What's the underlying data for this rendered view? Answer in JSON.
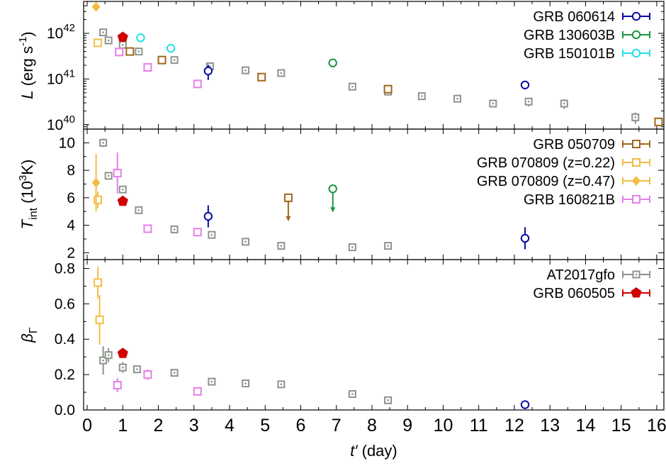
{
  "chart_data": {
    "type": "scatter",
    "x_axis": {
      "label_italic": "t′",
      "label_unit": " (day)",
      "range": [
        -0.1,
        16.2
      ],
      "ticks": [
        0,
        1,
        2,
        3,
        4,
        5,
        6,
        7,
        8,
        9,
        10,
        11,
        12,
        13,
        14,
        15,
        16
      ]
    },
    "panels": [
      {
        "id": "L",
        "ylabel_italic": "L",
        "ylabel_unit": " (erg s",
        "ylabel_sup": "-1",
        "ylabel_close": ")",
        "ylog": true,
        "yrange": [
          8e+39,
          5e+42
        ],
        "yticks": [
          {
            "base": "10",
            "exp": "40",
            "value": 1e+40
          },
          {
            "base": "10",
            "exp": "41",
            "value": 1e+41
          },
          {
            "base": "10",
            "exp": "42",
            "value": 1e+42
          }
        ],
        "legend": [
          "GRB 060614",
          "GRB 130603B",
          "GRB 150101B"
        ],
        "series": [
          {
            "name": "AT2017gfo",
            "color": "#8c948c",
            "marker": "square-dot",
            "x": [
              0.45,
              0.6,
              1.0,
              1.45,
              2.45,
              3.45,
              4.45,
              5.45,
              7.45,
              8.45,
              9.4,
              10.4,
              11.4,
              12.4,
              13.4,
              15.4
            ],
            "y": [
              1.05e+42,
              7e+41,
              5.6e+41,
              4e+41,
              2.6e+41,
              1.9e+41,
              1.55e+41,
              1.35e+41,
              6.8e+40,
              5.3e+40,
              4.2e+40,
              3.7e+40,
              2.9e+40,
              3.2e+40,
              2.9e+40,
              1.45e+40
            ],
            "yerr": [
              1.8e+41,
              5e+40,
              5e+40,
              3e+40,
              2e+40,
              1.5e+40,
              1e+40,
              1e+40,
              5e+39,
              4e+39,
              3e+39,
              3e+39,
              3e+39,
              7e+39,
              7e+39,
              4e+39
            ]
          },
          {
            "name": "GRB 050709",
            "color": "#a0661a",
            "marker": "square-open",
            "x": [
              1.2,
              2.1,
              4.9,
              8.45,
              16.05
            ],
            "y": [
              4e+41,
              2.6e+41,
              1.1e+41,
              6e+40,
              1.15e+40
            ],
            "yerr": [
              0,
              0,
              0,
              0,
              0
            ]
          },
          {
            "name": "GRB 070809 (z=0.22)",
            "color": "#f2bd45",
            "marker": "square-open",
            "x": [
              0.3
            ],
            "y": [
              6.2e+41
            ],
            "yerr": [
              0
            ]
          },
          {
            "name": "GRB 070809 (z=0.47)",
            "color": "#f2bd45",
            "marker": "diamond-filled",
            "x": [
              0.25
            ],
            "y": [
              3.8e+42
            ],
            "yerr": [
              0
            ]
          },
          {
            "name": "GRB 160821B",
            "color": "#e67ee6",
            "marker": "square-open",
            "x": [
              0.9,
              1.7,
              3.1
            ],
            "y": [
              3.9e+41,
              1.8e+41,
              7.8e+40
            ],
            "yerr": [
              0,
              3e+40,
              0
            ]
          },
          {
            "name": "GRB 060505",
            "color": "#d00000",
            "marker": "pentagon-filled",
            "x": [
              1.0
            ],
            "y": [
              8.2e+41
            ],
            "yerr": [
              0
            ]
          },
          {
            "name": "GRB 060614",
            "color": "#0a0aa5",
            "marker": "circle-open",
            "x": [
              3.4,
              12.3
            ],
            "y": [
              1.5e+41,
              7.4e+40
            ],
            "yerr": [
              5.5e+40,
              1.5e+40
            ]
          },
          {
            "name": "GRB 130603B",
            "color": "#1a9641",
            "marker": "circle-open",
            "x": [
              6.9
            ],
            "y": [
              2.25e+41
            ],
            "yerr": [
              0
            ]
          },
          {
            "name": "GRB 150101B",
            "color": "#22e0e6",
            "marker": "circle-open",
            "x": [
              1.5,
              2.35
            ],
            "y": [
              8e+41,
              4.7e+41
            ],
            "yerr": [
              0,
              0
            ]
          }
        ]
      },
      {
        "id": "T",
        "ylabel_italic": "T",
        "ylabel_sub": "int",
        "ylabel_unit": " (10",
        "ylabel_sup": "3",
        "ylabel_close": "K)",
        "ylog": false,
        "yrange": [
          1.5,
          11
        ],
        "yticks": [
          2,
          4,
          6,
          8,
          10
        ],
        "legend": [
          "GRB 050709",
          "GRB 070809 (z=0.22)",
          "GRB 070809 (z=0.47)",
          "GRB 160821B"
        ],
        "series": [
          {
            "name": "AT2017gfo",
            "color": "#8c948c",
            "marker": "square-dot",
            "x": [
              0.45,
              0.6,
              1.0,
              1.45,
              2.45,
              3.5,
              4.45,
              5.45,
              7.45,
              8.45
            ],
            "y": [
              10.0,
              7.6,
              6.6,
              5.1,
              3.7,
              3.3,
              2.8,
              2.5,
              2.4,
              2.5
            ],
            "yerr": [
              0.3,
              0.2,
              0.2,
              0.15,
              0.1,
              0.1,
              0.1,
              0.1,
              0.1,
              0.1
            ]
          },
          {
            "name": "GRB 050709",
            "color": "#a0661a",
            "marker": "square-open",
            "x": [
              5.65
            ],
            "y": [
              6.0
            ],
            "yerr": [
              0
            ],
            "upper_limit": true
          },
          {
            "name": "GRB 070809 (z=0.22)",
            "color": "#f2bd45",
            "marker": "square-open",
            "x": [
              0.3
            ],
            "y": [
              5.85
            ],
            "yerr": [
              0.6
            ]
          },
          {
            "name": "GRB 070809 (z=0.47)",
            "color": "#f2bd45",
            "marker": "diamond-filled",
            "x": [
              0.25
            ],
            "y": [
              7.1
            ],
            "yerr": [
              2.1
            ]
          },
          {
            "name": "GRB 160821B",
            "color": "#e67ee6",
            "marker": "square-open",
            "x": [
              0.85,
              1.7,
              3.1
            ],
            "y": [
              7.8,
              3.75,
              3.5
            ],
            "yerr": [
              1.5,
              0.3,
              0
            ]
          },
          {
            "name": "GRB 060505",
            "color": "#d00000",
            "marker": "pentagon-filled",
            "x": [
              1.0
            ],
            "y": [
              5.75
            ],
            "yerr": [
              0
            ]
          },
          {
            "name": "GRB 060614",
            "color": "#0a0aa5",
            "marker": "circle-open",
            "x": [
              3.4,
              12.3
            ],
            "y": [
              4.65,
              3.05
            ],
            "yerr": [
              0.8,
              0.8
            ]
          },
          {
            "name": "GRB 130603B",
            "color": "#1a9641",
            "marker": "circle-open",
            "x": [
              6.9
            ],
            "y": [
              6.65
            ],
            "yerr": [
              0
            ],
            "upper_limit": true
          }
        ]
      },
      {
        "id": "beta",
        "ylabel_italic": "β",
        "ylabel_sub": "Γ",
        "ylog": false,
        "yrange": [
          0.0,
          0.85
        ],
        "yticks": [
          "0.0",
          "0.2",
          "0.4",
          "0.6",
          "0.8"
        ],
        "legend": [
          "AT2017gfo",
          "GRB 060505"
        ],
        "series": [
          {
            "name": "AT2017gfo",
            "color": "#8c948c",
            "marker": "square-dot",
            "x": [
              0.45,
              0.6,
              1.0,
              1.4,
              2.45,
              3.5,
              4.45,
              5.45,
              7.45,
              8.45
            ],
            "y": [
              0.28,
              0.31,
              0.24,
              0.23,
              0.21,
              0.16,
              0.15,
              0.145,
              0.09,
              0.055
            ],
            "yerr": [
              0.08,
              0.04,
              0.03,
              0.02,
              0.02,
              0.015,
              0.015,
              0.015,
              0.01,
              0.01
            ]
          },
          {
            "name": "GRB 070809 (z=0.22)",
            "color": "#f2bd45",
            "marker": "square-open",
            "x": [
              0.3,
              0.35
            ],
            "y": [
              0.72,
              0.51
            ],
            "yerr": [
              0.09,
              0.14
            ]
          },
          {
            "name": "GRB 160821B",
            "color": "#e67ee6",
            "marker": "square-open",
            "x": [
              0.85,
              1.7,
              3.1
            ],
            "y": [
              0.14,
              0.2,
              0.105
            ],
            "yerr": [
              0.04,
              0.03,
              0
            ]
          },
          {
            "name": "GRB 060505",
            "color": "#d00000",
            "marker": "pentagon-filled",
            "x": [
              1.0
            ],
            "y": [
              0.32
            ],
            "yerr": [
              0
            ]
          },
          {
            "name": "GRB 060614",
            "color": "#0a0aa5",
            "marker": "circle-open",
            "x": [
              12.3
            ],
            "y": [
              0.03
            ],
            "yerr": [
              0
            ]
          }
        ]
      }
    ]
  }
}
